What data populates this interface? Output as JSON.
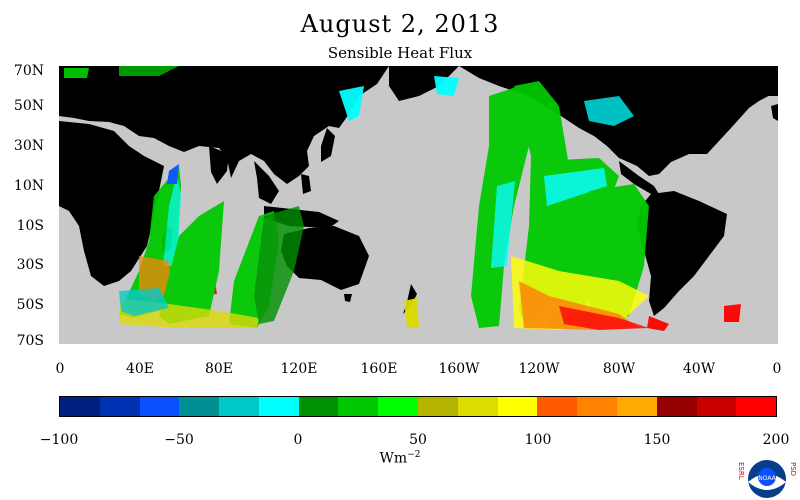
{
  "title": "August 2, 2013",
  "subtitle": "Sensible Heat Flux",
  "lat_labels": [
    "70N",
    "50N",
    "30N",
    "10N",
    "10S",
    "30S",
    "50S",
    "70S"
  ],
  "lon_labels": [
    "0",
    "40E",
    "80E",
    "120E",
    "160E",
    "160W",
    "120W",
    "80W",
    "40W",
    "0"
  ],
  "colorbar": {
    "ticks": [
      "−100",
      "−50",
      "0",
      "50",
      "100",
      "150",
      "200"
    ],
    "units_base": "Wm",
    "units_exp": "−2",
    "colors": [
      "#00207f",
      "#0032b4",
      "#0a50ff",
      "#009094",
      "#00c8c8",
      "#00ffff",
      "#009000",
      "#00c800",
      "#00ff00",
      "#b4b400",
      "#dcdc00",
      "#ffff00",
      "#ff5a00",
      "#ff8200",
      "#ffaa00",
      "#960000",
      "#c80000",
      "#ff0000"
    ]
  },
  "colors": {
    "land": "#000000",
    "ocean_nodata": "#c8c8c8"
  },
  "logo": {
    "left_text": "ESRL",
    "right_text": "PSD",
    "name": "NOAA"
  }
}
